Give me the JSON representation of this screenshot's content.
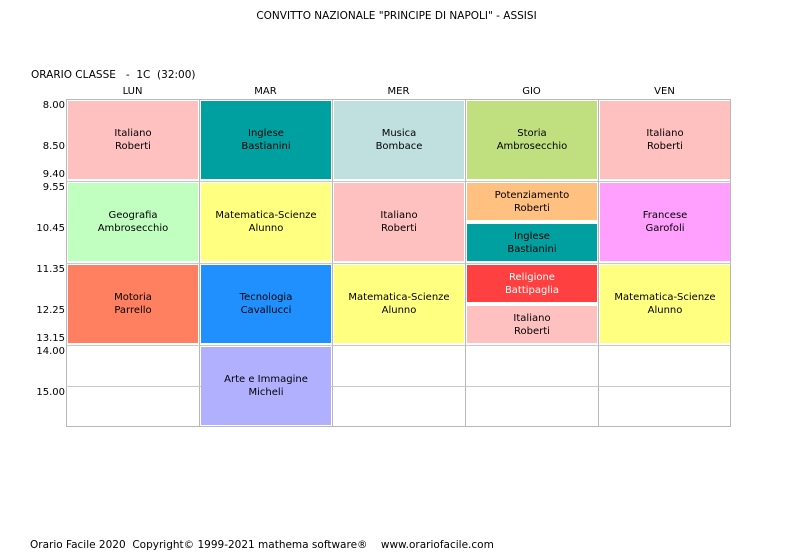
{
  "header": {
    "title": "CONVITTO NAZIONALE \"PRINCIPE DI NAPOLI\" - ASSISI",
    "class_label": "ORARIO CLASSE   -  1C  (32:00)"
  },
  "days": [
    "LUN",
    "MAR",
    "MER",
    "GIO",
    "VEN"
  ],
  "times": [
    "8.00",
    "8.50",
    "9.40",
    "9.55",
    "10.45",
    "11.35",
    "12.25",
    "13.15",
    "14.00",
    "15.00"
  ],
  "lessons": [
    {
      "subject": "Italiano",
      "teacher": "Roberti",
      "color": "#ffc0c0"
    },
    {
      "subject": "Inglese",
      "teacher": "Bastianini",
      "color": "#00a0a0"
    },
    {
      "subject": "Musica",
      "teacher": "Bombace",
      "color": "#c0e0e0"
    },
    {
      "subject": "Storia",
      "teacher": "Ambrosecchio",
      "color": "#c0e080"
    },
    {
      "subject": "Italiano",
      "teacher": "Roberti",
      "color": "#ffc0c0"
    },
    {
      "subject": "Geografia",
      "teacher": "Ambrosecchio",
      "color": "#c0ffc0"
    },
    {
      "subject": "Matematica-Scienze",
      "teacher": "Alunno",
      "color": "#ffff80"
    },
    {
      "subject": "Italiano",
      "teacher": "Roberti",
      "color": "#ffc0c0"
    },
    {
      "subject": "Potenziamento",
      "teacher": "Roberti",
      "color": "#ffc080"
    },
    {
      "subject": "Inglese",
      "teacher": "Bastianini",
      "color": "#00a0a0"
    },
    {
      "subject": "Francese",
      "teacher": "Garofoli",
      "color": "#ff a0ff"
    },
    {
      "subject": "Motoria",
      "teacher": "Parrello",
      "color": "#ff8060"
    },
    {
      "subject": "Tecnologia",
      "teacher": "Cavallucci",
      "color": "#2090ff"
    },
    {
      "subject": "Matematica-Scienze",
      "teacher": "Alunno",
      "color": "#ffff80"
    },
    {
      "subject": "Religione",
      "teacher": "Battipaglia",
      "color": "#ff4040"
    },
    {
      "subject": "Italiano",
      "teacher": "Roberti",
      "color": "#ffc0c0"
    },
    {
      "subject": "Matematica-Scienze",
      "teacher": "Alunno",
      "color": "#ffff80"
    },
    {
      "subject": "Arte e Immagine",
      "teacher": "Micheli",
      "color": "#b0b0ff"
    }
  ],
  "footer": {
    "text": "Orario Facile 2020  Copyright© 1999-2021 mathema software®    www.orariofacile.com"
  }
}
